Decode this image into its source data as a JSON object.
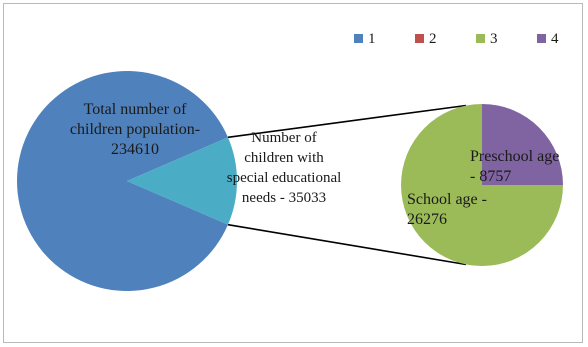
{
  "chart_data": [
    {
      "type": "pie",
      "slices": [
        {
          "name": "Total number of children population",
          "value": 234610,
          "label_lines": [
            "Total number of",
            "children population-",
            "234610"
          ],
          "color": "#4f81bd"
        },
        {
          "name": "Number of children with special educational needs",
          "value": 35033,
          "label_lines": [
            "Number of",
            "children with",
            "special educational",
            "needs - 35033"
          ],
          "color": "#4bacc6"
        }
      ]
    },
    {
      "type": "pie",
      "slices": [
        {
          "name": "School age",
          "value": 26276,
          "label_lines": [
            "School age -",
            "26276"
          ],
          "color": "#9bbb59"
        },
        {
          "name": "Preschool age",
          "value": 8757,
          "label_lines": [
            "Preschool age",
            "- 8757"
          ],
          "color": "#8064a2"
        }
      ]
    }
  ],
  "legend": {
    "placement": "top-right",
    "items": [
      {
        "label": "1",
        "color": "#4f81bd"
      },
      {
        "label": "2",
        "color": "#c0504d"
      },
      {
        "label": "3",
        "color": "#9bbb59"
      },
      {
        "label": "4",
        "color": "#8064a2"
      }
    ]
  }
}
